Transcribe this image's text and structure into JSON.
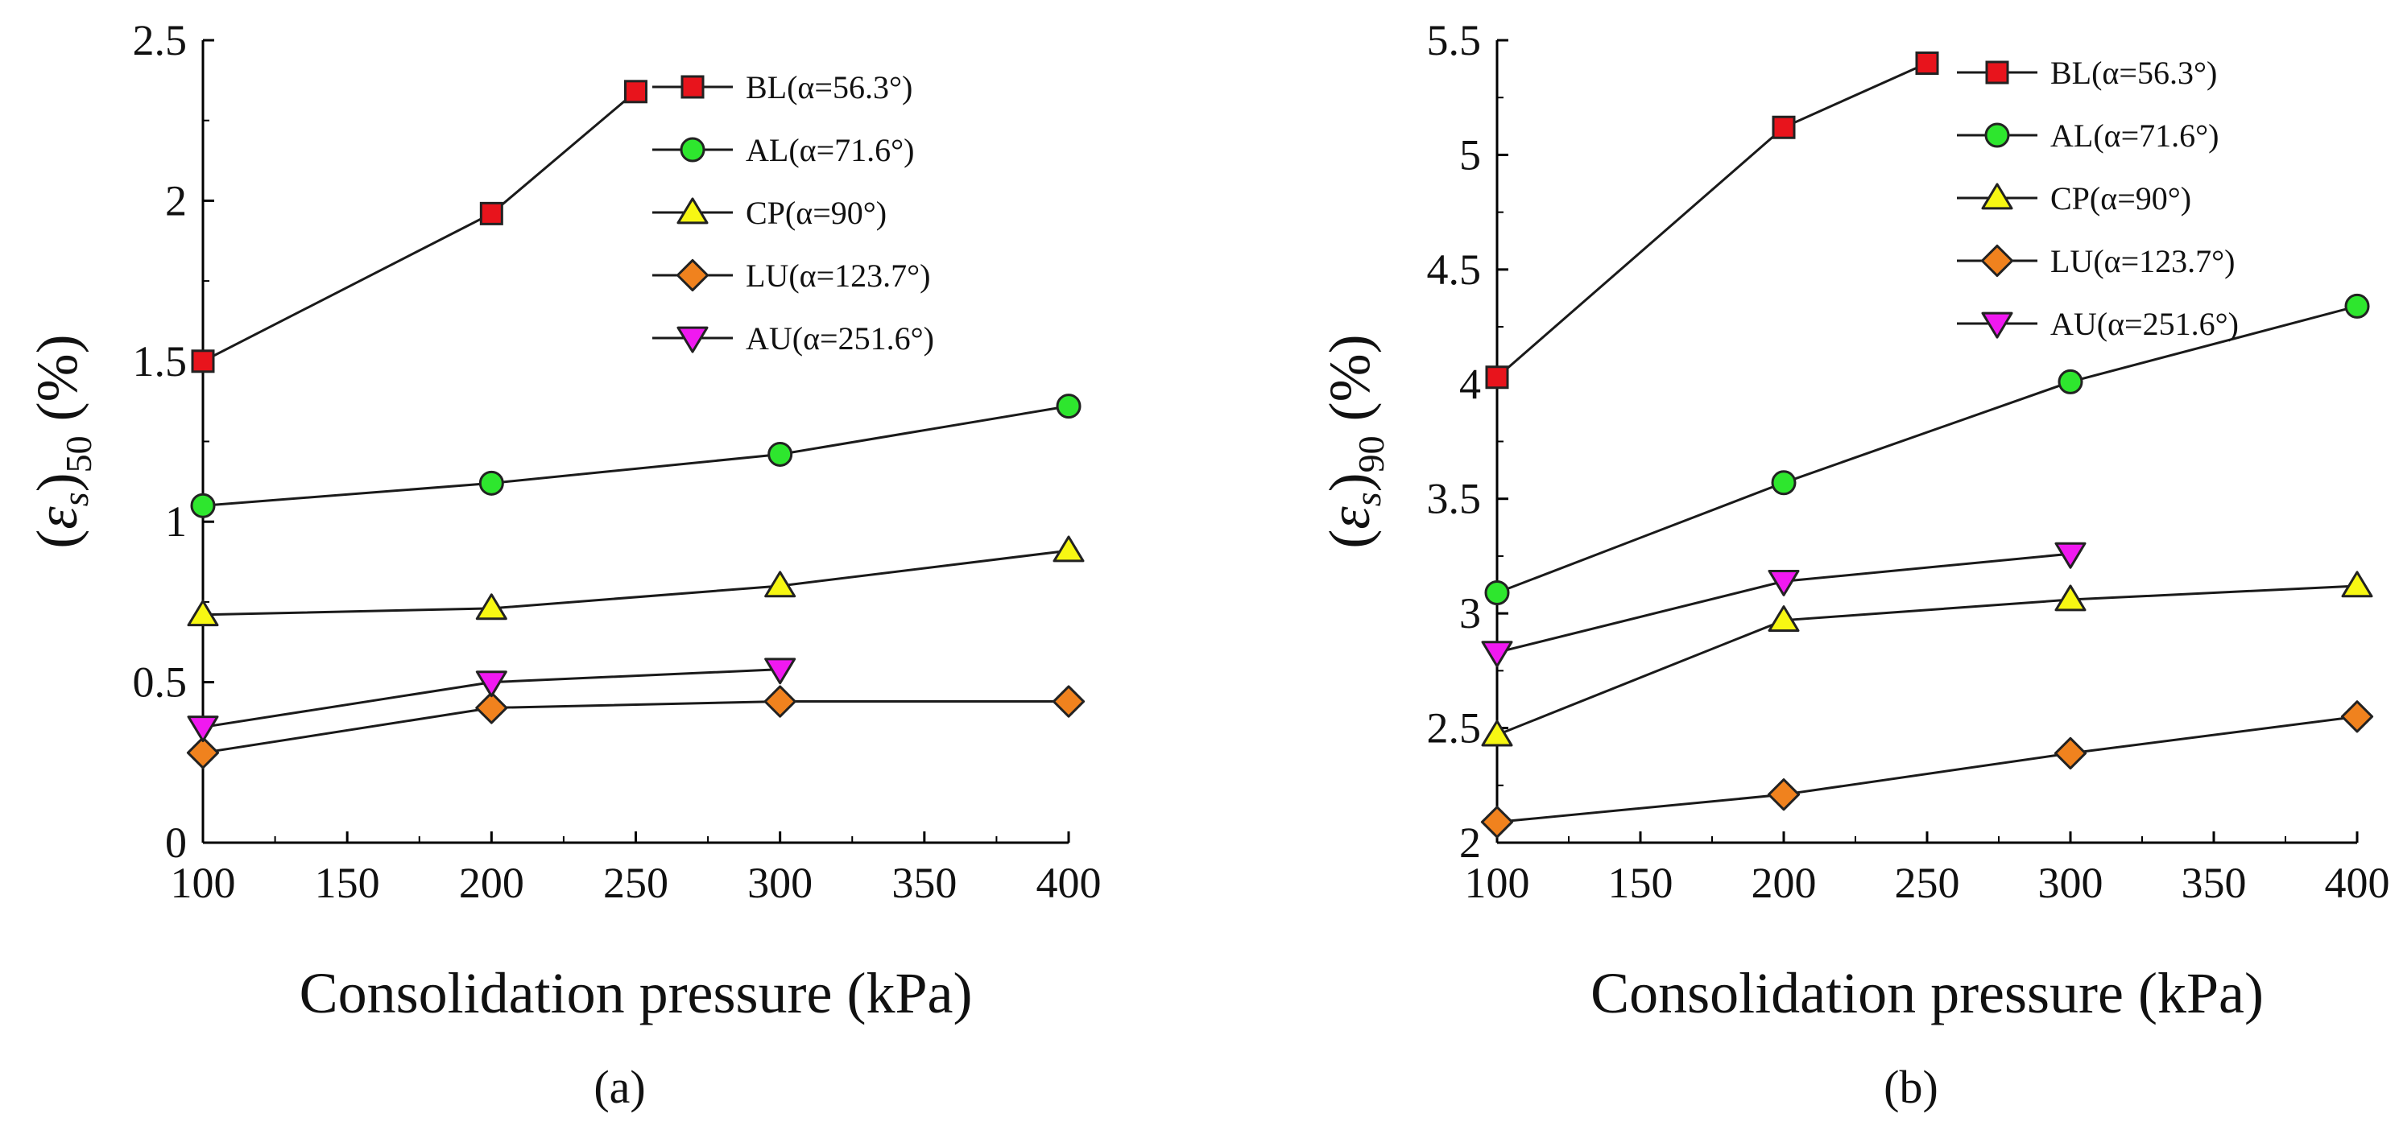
{
  "chart_data": [
    {
      "type": "line",
      "panel": "(a)",
      "xlabel": "Consolidation pressure (kPa)",
      "ylabel": {
        "open": "(",
        "symbol": "ε",
        "sub_s": "s",
        "close": ")",
        "sub": "50",
        "unit": " (%)"
      },
      "xlim": [
        100,
        400
      ],
      "ylim": [
        0,
        2.5
      ],
      "xticks": [
        100,
        150,
        200,
        250,
        300,
        350,
        400
      ],
      "yticks": [
        "0",
        "0.5",
        "1",
        "1.5",
        "2",
        "2.5"
      ],
      "ytick_values": [
        0,
        0.5,
        1,
        1.5,
        2,
        2.5
      ],
      "legend_position": "top-right",
      "series": [
        {
          "name": "BL(α=56.3°)",
          "marker": "square",
          "color": "#e8141c",
          "x": [
            100,
            200,
            250
          ],
          "values": [
            1.5,
            1.96,
            2.34
          ]
        },
        {
          "name": "AL(α=71.6°)",
          "marker": "circle",
          "color": "#2ee62e",
          "x": [
            100,
            200,
            300,
            400
          ],
          "values": [
            1.05,
            1.12,
            1.21,
            1.36
          ]
        },
        {
          "name": "CP(α=90°)",
          "marker": "triangle-up",
          "color": "#f7f713",
          "x": [
            100,
            200,
            300,
            400
          ],
          "values": [
            0.71,
            0.73,
            0.8,
            0.91
          ]
        },
        {
          "name": "LU(α=123.7°)",
          "marker": "diamond",
          "color": "#f0821e",
          "x": [
            100,
            200,
            300,
            400
          ],
          "values": [
            0.28,
            0.42,
            0.44,
            0.44
          ]
        },
        {
          "name": "AU(α=251.6°)",
          "marker": "triangle-down",
          "color": "#f019f0",
          "x": [
            100,
            200,
            300
          ],
          "values": [
            0.36,
            0.5,
            0.54
          ]
        }
      ]
    },
    {
      "type": "line",
      "panel": "(b)",
      "xlabel": "Consolidation pressure (kPa)",
      "ylabel": {
        "open": "(",
        "symbol": "ε",
        "sub_s": "s",
        "close": ")",
        "sub": "90",
        "unit": " (%)"
      },
      "xlim": [
        100,
        400
      ],
      "ylim": [
        2,
        5.5
      ],
      "xticks": [
        100,
        150,
        200,
        250,
        300,
        350,
        400
      ],
      "yticks": [
        "2",
        "2.5",
        "3",
        "3.5",
        "4",
        "4.5",
        "5",
        "5.5"
      ],
      "ytick_values": [
        2,
        2.5,
        3,
        3.5,
        4,
        4.5,
        5,
        5.5
      ],
      "legend_position": "top-right",
      "series": [
        {
          "name": "BL(α=56.3°)",
          "marker": "square",
          "color": "#e8141c",
          "x": [
            100,
            200,
            250
          ],
          "values": [
            4.03,
            5.12,
            5.4
          ]
        },
        {
          "name": "AL(α=71.6°)",
          "marker": "circle",
          "color": "#2ee62e",
          "x": [
            100,
            200,
            300,
            400
          ],
          "values": [
            3.09,
            3.57,
            4.01,
            4.34
          ]
        },
        {
          "name": "CP(α=90°)",
          "marker": "triangle-up",
          "color": "#f7f713",
          "x": [
            100,
            200,
            300,
            400
          ],
          "values": [
            2.47,
            2.97,
            3.06,
            3.12
          ]
        },
        {
          "name": "LU(α=123.7°)",
          "marker": "diamond",
          "color": "#f0821e",
          "x": [
            100,
            200,
            300,
            400
          ],
          "values": [
            2.09,
            2.21,
            2.39,
            2.55
          ]
        },
        {
          "name": "AU(α=251.6°)",
          "marker": "triangle-down",
          "color": "#f019f0",
          "x": [
            100,
            200,
            300
          ],
          "values": [
            2.83,
            3.14,
            3.26
          ]
        }
      ]
    }
  ]
}
